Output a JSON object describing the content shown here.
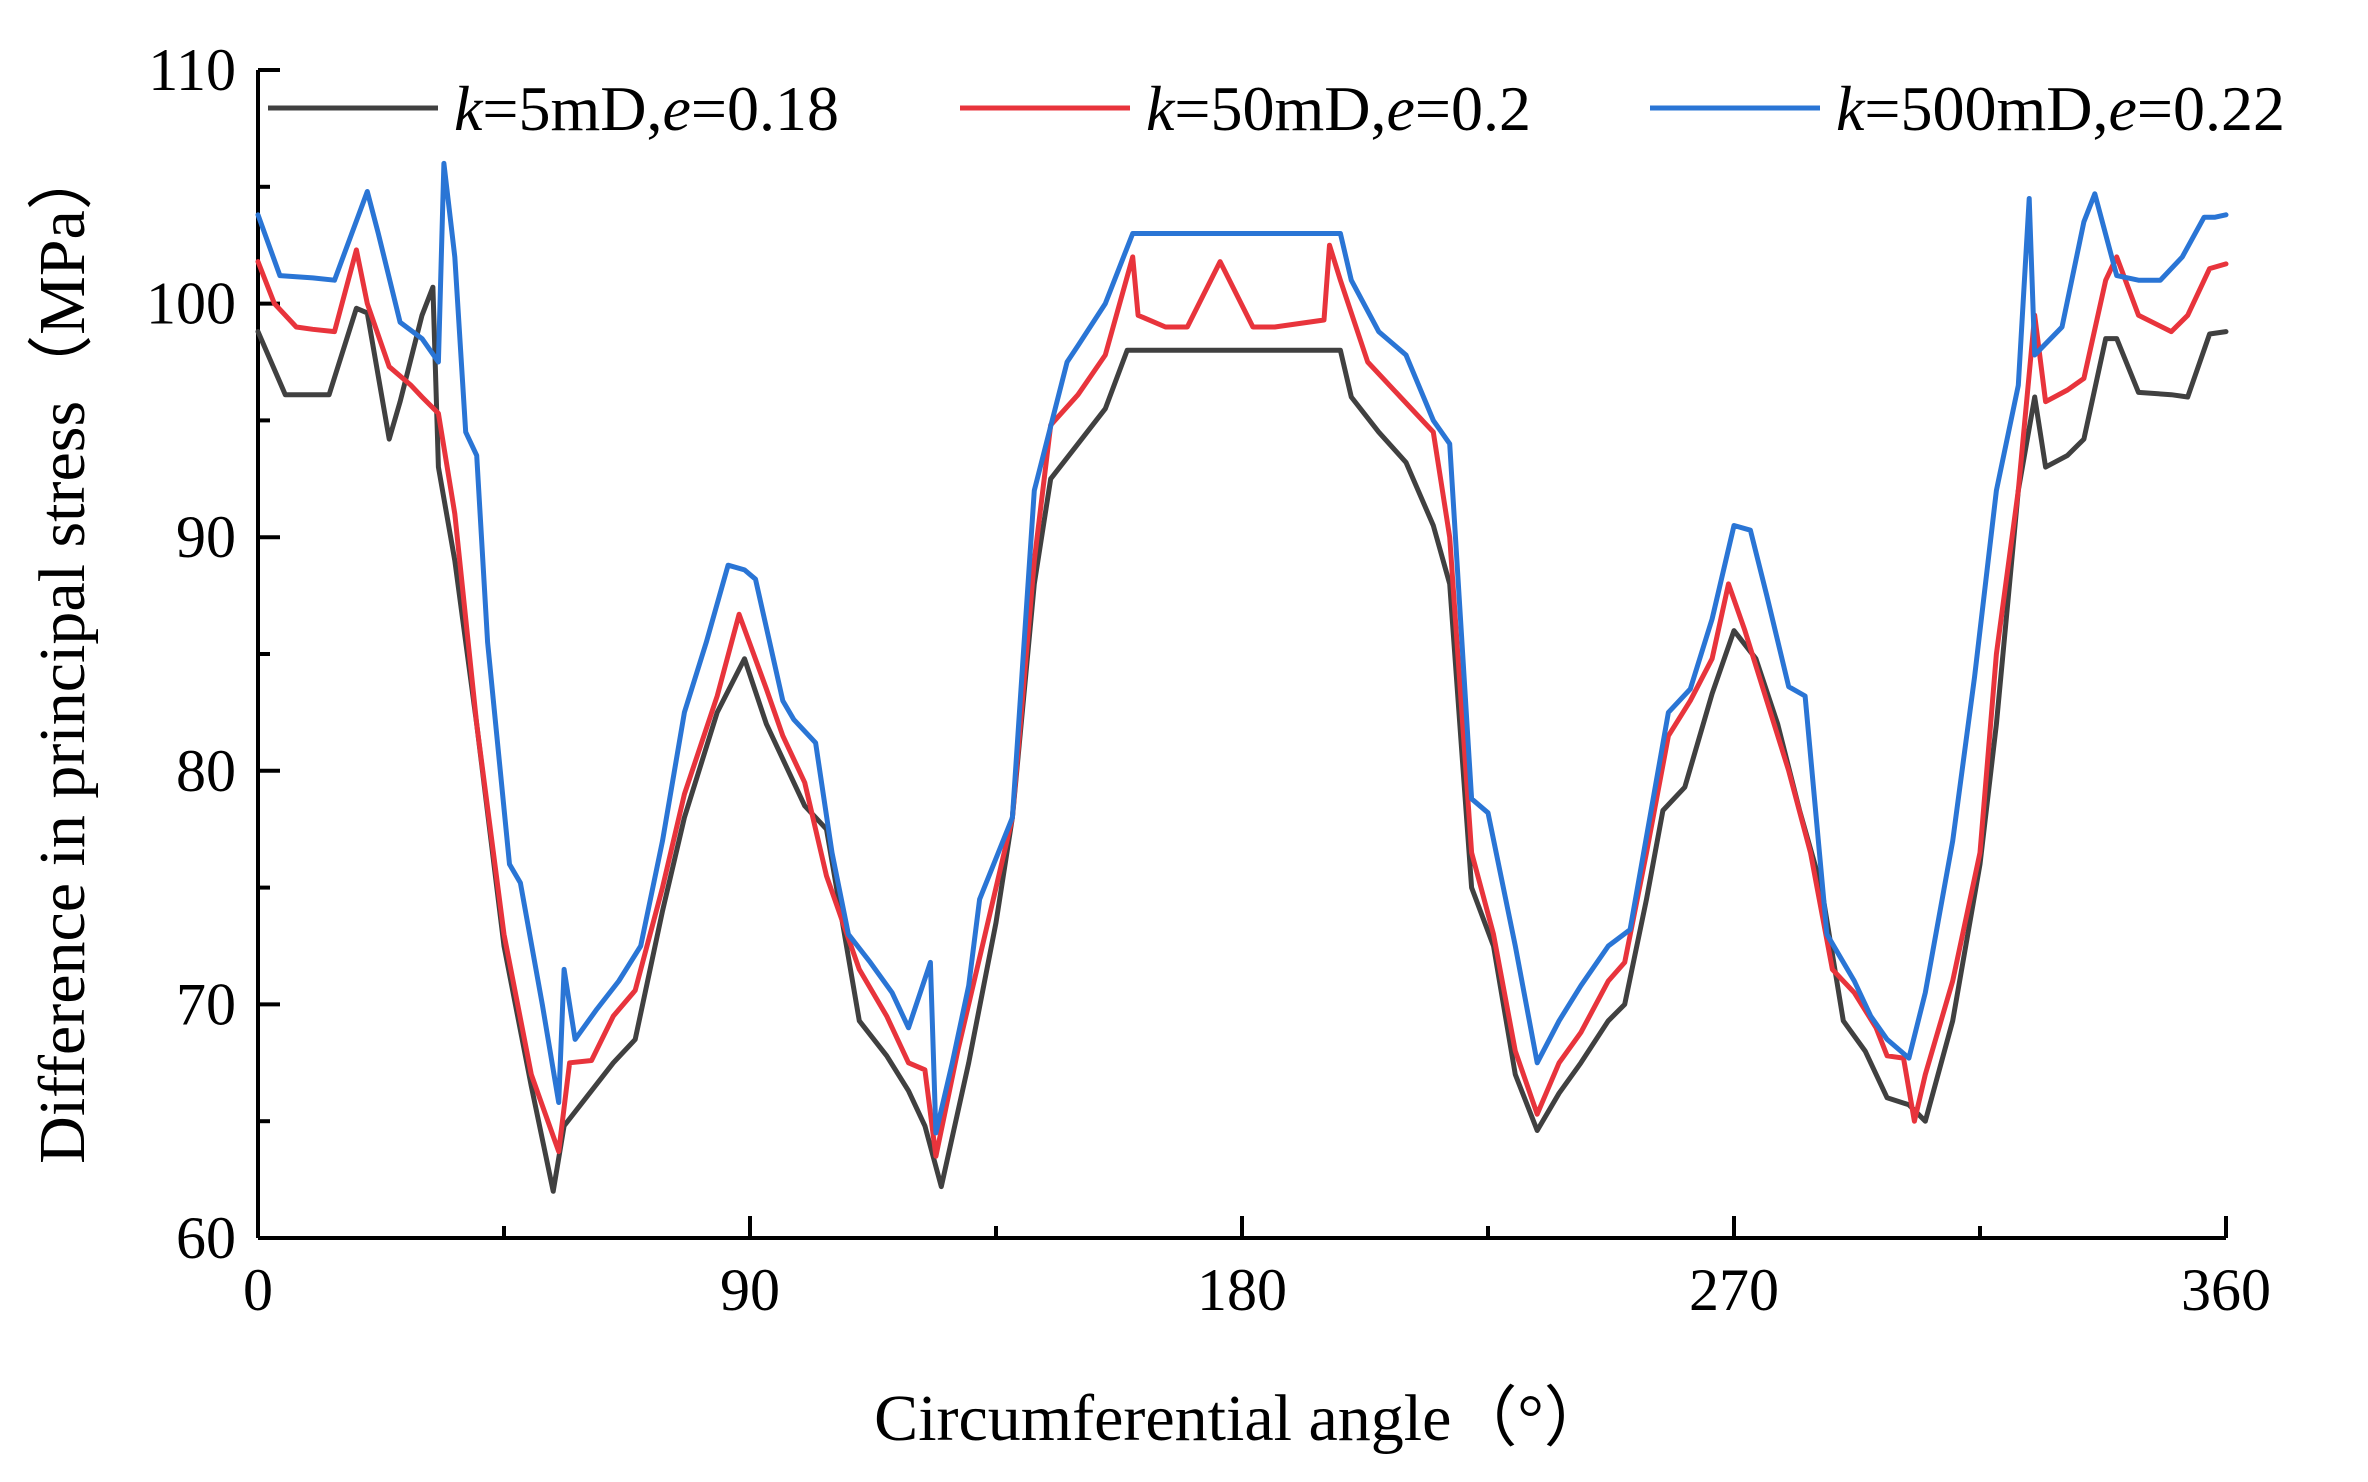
{
  "chart_data": {
    "type": "line",
    "title": "",
    "xlabel": "Circumferential angle（°）",
    "ylabel": "Difference in principal stress（MPa）",
    "xlim": [
      0,
      360
    ],
    "ylim": [
      60,
      110
    ],
    "x_ticks": [
      0,
      90,
      180,
      270,
      360
    ],
    "y_ticks": [
      60,
      70,
      80,
      90,
      100,
      110
    ],
    "grid": false,
    "legend_position": "top",
    "series": [
      {
        "name": "k=5mD,e=0.18",
        "legend": {
          "var1": "k",
          "eq1": "=5mD,",
          "var2": "e",
          "eq2": "=0.18"
        },
        "color": "#404040",
        "points": [
          [
            0,
            98.8
          ],
          [
            5,
            96.1
          ],
          [
            13,
            96.1
          ],
          [
            18,
            99.8
          ],
          [
            20,
            99.6
          ],
          [
            24,
            94.2
          ],
          [
            26,
            95.8
          ],
          [
            30,
            99.5
          ],
          [
            32,
            100.7
          ],
          [
            33,
            93.0
          ],
          [
            36,
            89.0
          ],
          [
            40,
            82.0
          ],
          [
            45,
            72.5
          ],
          [
            50,
            66.5
          ],
          [
            54,
            62.0
          ],
          [
            56,
            64.8
          ],
          [
            60,
            66.0
          ],
          [
            65,
            67.5
          ],
          [
            69,
            68.5
          ],
          [
            74,
            74.0
          ],
          [
            78,
            78.0
          ],
          [
            84,
            82.5
          ],
          [
            89,
            84.8
          ],
          [
            93,
            82.0
          ],
          [
            96,
            80.5
          ],
          [
            100,
            78.5
          ],
          [
            104,
            77.5
          ],
          [
            110,
            69.3
          ],
          [
            115,
            67.8
          ],
          [
            119,
            66.3
          ],
          [
            122,
            64.8
          ],
          [
            125,
            62.2
          ],
          [
            130,
            67.5
          ],
          [
            135,
            73.5
          ],
          [
            138,
            78.0
          ],
          [
            142,
            88.0
          ],
          [
            145,
            92.5
          ],
          [
            150,
            94.0
          ],
          [
            155,
            95.5
          ],
          [
            159,
            98.0
          ],
          [
            165,
            98.0
          ],
          [
            180,
            98.0
          ],
          [
            190,
            98.0
          ],
          [
            198,
            98.0
          ],
          [
            200,
            96.0
          ],
          [
            205,
            94.5
          ],
          [
            210,
            93.2
          ],
          [
            215,
            90.5
          ],
          [
            218,
            88.0
          ],
          [
            222,
            75.0
          ],
          [
            226,
            72.5
          ],
          [
            230,
            67.0
          ],
          [
            234,
            64.6
          ],
          [
            238,
            66.2
          ],
          [
            242,
            67.5
          ],
          [
            247,
            69.3
          ],
          [
            250,
            70.0
          ],
          [
            254,
            74.5
          ],
          [
            257,
            78.3
          ],
          [
            261,
            79.3
          ],
          [
            266,
            83.3
          ],
          [
            270,
            86.0
          ],
          [
            274,
            84.8
          ],
          [
            278,
            82.0
          ],
          [
            282,
            78.3
          ],
          [
            286,
            75.0
          ],
          [
            290,
            69.3
          ],
          [
            294,
            68.0
          ],
          [
            298,
            66.0
          ],
          [
            302,
            65.7
          ],
          [
            305,
            65.0
          ],
          [
            310,
            69.3
          ],
          [
            315,
            76.0
          ],
          [
            318,
            82.0
          ],
          [
            322,
            92.0
          ],
          [
            325,
            96.0
          ],
          [
            327,
            93.0
          ],
          [
            331,
            93.5
          ],
          [
            334,
            94.2
          ],
          [
            338,
            98.5
          ],
          [
            340,
            98.5
          ],
          [
            344,
            96.2
          ],
          [
            350,
            96.1
          ],
          [
            353,
            96.0
          ],
          [
            357,
            98.7
          ],
          [
            360,
            98.8
          ]
        ]
      },
      {
        "name": "k=50mD,e=0.2",
        "legend": {
          "var1": "k",
          "eq1": "=50mD,",
          "var2": "e",
          "eq2": "=0.2"
        },
        "color": "#e8343c",
        "points": [
          [
            0,
            101.8
          ],
          [
            3,
            100.0
          ],
          [
            7,
            99.0
          ],
          [
            10,
            98.9
          ],
          [
            14,
            98.8
          ],
          [
            18,
            102.3
          ],
          [
            20,
            100.0
          ],
          [
            24,
            97.3
          ],
          [
            28,
            96.5
          ],
          [
            30,
            96.0
          ],
          [
            33,
            95.3
          ],
          [
            36,
            91.0
          ],
          [
            40,
            82.0
          ],
          [
            45,
            73.0
          ],
          [
            50,
            67.0
          ],
          [
            55,
            63.7
          ],
          [
            57,
            67.5
          ],
          [
            61,
            67.6
          ],
          [
            65,
            69.5
          ],
          [
            69,
            70.6
          ],
          [
            74,
            75.0
          ],
          [
            78,
            79.0
          ],
          [
            84,
            83.2
          ],
          [
            88,
            86.7
          ],
          [
            93,
            83.5
          ],
          [
            96,
            81.5
          ],
          [
            100,
            79.5
          ],
          [
            104,
            75.5
          ],
          [
            110,
            71.5
          ],
          [
            115,
            69.5
          ],
          [
            119,
            67.5
          ],
          [
            122,
            67.2
          ],
          [
            124,
            63.5
          ],
          [
            128,
            68.0
          ],
          [
            133,
            73.0
          ],
          [
            138,
            78.0
          ],
          [
            142,
            89.0
          ],
          [
            145,
            94.8
          ],
          [
            150,
            96.1
          ],
          [
            155,
            97.8
          ],
          [
            160,
            102.0
          ],
          [
            161,
            99.5
          ],
          [
            166,
            99.0
          ],
          [
            170,
            99.0
          ],
          [
            176,
            101.8
          ],
          [
            182,
            99.0
          ],
          [
            186,
            99.0
          ],
          [
            195,
            99.3
          ],
          [
            196,
            102.5
          ],
          [
            198,
            101.0
          ],
          [
            203,
            97.5
          ],
          [
            207,
            96.5
          ],
          [
            215,
            94.5
          ],
          [
            218,
            90.0
          ],
          [
            222,
            76.5
          ],
          [
            226,
            73.0
          ],
          [
            230,
            68.0
          ],
          [
            234,
            65.3
          ],
          [
            238,
            67.5
          ],
          [
            242,
            68.8
          ],
          [
            247,
            71.0
          ],
          [
            250,
            71.8
          ],
          [
            254,
            76.5
          ],
          [
            258,
            81.5
          ],
          [
            262,
            83.0
          ],
          [
            266,
            84.8
          ],
          [
            269,
            88.0
          ],
          [
            272,
            86.0
          ],
          [
            276,
            83.0
          ],
          [
            280,
            80.0
          ],
          [
            284,
            76.5
          ],
          [
            288,
            71.5
          ],
          [
            292,
            70.5
          ],
          [
            296,
            69.0
          ],
          [
            298,
            67.8
          ],
          [
            301,
            67.7
          ],
          [
            303,
            65.0
          ],
          [
            305,
            67.0
          ],
          [
            310,
            71.0
          ],
          [
            315,
            76.5
          ],
          [
            318,
            85.0
          ],
          [
            322,
            92.0
          ],
          [
            325,
            99.5
          ],
          [
            327,
            95.8
          ],
          [
            331,
            96.3
          ],
          [
            334,
            96.8
          ],
          [
            338,
            101.0
          ],
          [
            340,
            102.0
          ],
          [
            344,
            99.5
          ],
          [
            350,
            98.8
          ],
          [
            353,
            99.5
          ],
          [
            357,
            101.5
          ],
          [
            360,
            101.7
          ]
        ]
      },
      {
        "name": "k=500mD,e=0.22",
        "legend": {
          "var1": "k",
          "eq1": "=500mD,",
          "var2": "e",
          "eq2": "=0.22"
        },
        "color": "#2a75d5",
        "points": [
          [
            0,
            103.8
          ],
          [
            4,
            101.2
          ],
          [
            10,
            101.1
          ],
          [
            14,
            101.0
          ],
          [
            20,
            104.8
          ],
          [
            22,
            103.0
          ],
          [
            26,
            99.2
          ],
          [
            30,
            98.5
          ],
          [
            33,
            97.5
          ],
          [
            34,
            106.0
          ],
          [
            36,
            102.0
          ],
          [
            38,
            94.5
          ],
          [
            40,
            93.5
          ],
          [
            42,
            85.5
          ],
          [
            46,
            76.0
          ],
          [
            48,
            75.2
          ],
          [
            52,
            70.0
          ],
          [
            55,
            65.8
          ],
          [
            56,
            71.5
          ],
          [
            58,
            68.5
          ],
          [
            62,
            69.8
          ],
          [
            66,
            71.0
          ],
          [
            70,
            72.5
          ],
          [
            74,
            77.0
          ],
          [
            78,
            82.5
          ],
          [
            82,
            85.5
          ],
          [
            86,
            88.8
          ],
          [
            89,
            88.6
          ],
          [
            91,
            88.2
          ],
          [
            96,
            83.0
          ],
          [
            98,
            82.2
          ],
          [
            102,
            81.2
          ],
          [
            105,
            76.5
          ],
          [
            108,
            73.0
          ],
          [
            112,
            71.8
          ],
          [
            116,
            70.5
          ],
          [
            119,
            69.0
          ],
          [
            123,
            71.8
          ],
          [
            124,
            64.5
          ],
          [
            127,
            67.5
          ],
          [
            130,
            70.8
          ],
          [
            132,
            74.5
          ],
          [
            138,
            78.0
          ],
          [
            142,
            92.0
          ],
          [
            148,
            97.5
          ],
          [
            150,
            98.2
          ],
          [
            155,
            100.0
          ],
          [
            160,
            103.0
          ],
          [
            170,
            103.0
          ],
          [
            180,
            103.0
          ],
          [
            190,
            103.0
          ],
          [
            198,
            103.0
          ],
          [
            200,
            101.0
          ],
          [
            205,
            98.8
          ],
          [
            210,
            97.8
          ],
          [
            215,
            95.0
          ],
          [
            218,
            94.0
          ],
          [
            222,
            78.8
          ],
          [
            225,
            78.2
          ],
          [
            230,
            72.5
          ],
          [
            234,
            67.5
          ],
          [
            238,
            69.3
          ],
          [
            242,
            70.8
          ],
          [
            247,
            72.5
          ],
          [
            251,
            73.2
          ],
          [
            258,
            82.5
          ],
          [
            262,
            83.5
          ],
          [
            266,
            86.5
          ],
          [
            270,
            90.5
          ],
          [
            273,
            90.3
          ],
          [
            276,
            87.5
          ],
          [
            280,
            83.6
          ],
          [
            283,
            83.2
          ],
          [
            287,
            73.0
          ],
          [
            292,
            71.0
          ],
          [
            295,
            69.5
          ],
          [
            298,
            68.5
          ],
          [
            302,
            67.7
          ],
          [
            305,
            70.5
          ],
          [
            310,
            77.0
          ],
          [
            314,
            84.0
          ],
          [
            318,
            92.0
          ],
          [
            322,
            96.5
          ],
          [
            324,
            104.5
          ],
          [
            325,
            97.8
          ],
          [
            330,
            99.0
          ],
          [
            334,
            103.5
          ],
          [
            336,
            104.7
          ],
          [
            340,
            101.2
          ],
          [
            344,
            101.0
          ],
          [
            348,
            101.0
          ],
          [
            352,
            102.0
          ],
          [
            356,
            103.7
          ],
          [
            358,
            103.7
          ],
          [
            360,
            103.8
          ]
        ]
      }
    ]
  }
}
